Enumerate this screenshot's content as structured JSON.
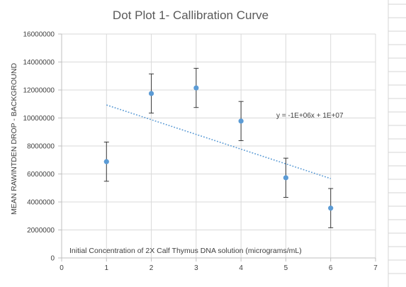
{
  "chart_data": {
    "type": "scatter",
    "title": "Dot Plot 1- Callibration Curve",
    "xlabel": "Initial Concentration of 2X Calf Thymus DNA solution (micrograms/mL)",
    "ylabel": "MEAN RAWINTDEN DROP - BACKGROUND",
    "xlim": [
      0,
      7
    ],
    "ylim": [
      0,
      16000000
    ],
    "x_ticks": [
      "0",
      "1",
      "2",
      "3",
      "4",
      "5",
      "6",
      "7"
    ],
    "y_ticks": [
      "0",
      "2000000",
      "4000000",
      "6000000",
      "8000000",
      "10000000",
      "12000000",
      "14000000",
      "16000000"
    ],
    "grid": true,
    "legend": "none",
    "points": [
      {
        "x": 1,
        "y": 6880000,
        "err": 1400000
      },
      {
        "x": 2,
        "y": 11750000,
        "err": 1400000
      },
      {
        "x": 3,
        "y": 12150000,
        "err": 1400000
      },
      {
        "x": 4,
        "y": 9780000,
        "err": 1400000
      },
      {
        "x": 5,
        "y": 5730000,
        "err": 1400000
      },
      {
        "x": 6,
        "y": 3560000,
        "err": 1400000
      }
    ],
    "trendline": {
      "type": "linear",
      "x_range": [
        1,
        6
      ],
      "y_start": 10930000,
      "y_end": 5670000,
      "equation": "y = -1E+06x + 1E+07"
    },
    "colors": {
      "marker": "#5b9bd5",
      "trendline": "#5b9bd5",
      "error_bar": "#3a3a3a",
      "grid": "#d9d9d9"
    }
  }
}
